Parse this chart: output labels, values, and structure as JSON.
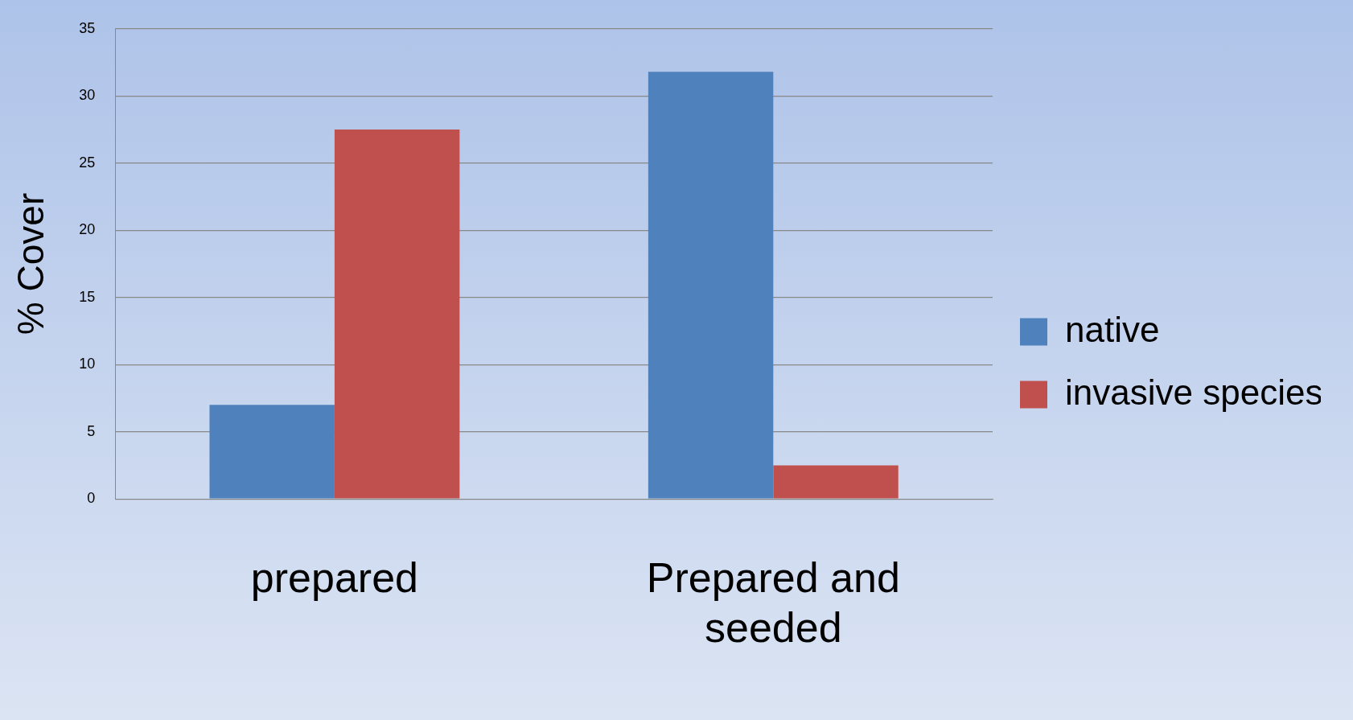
{
  "chart_data": {
    "type": "bar",
    "ylabel": "% Cover",
    "categories": [
      "prepared",
      "Prepared and seeded"
    ],
    "series": [
      {
        "name": "native",
        "color": "#4f81bd",
        "values": [
          7.0,
          31.8
        ]
      },
      {
        "name": "invasive species",
        "color": "#c0504d",
        "values": [
          27.5,
          2.5
        ]
      }
    ],
    "ylim": [
      0,
      35
    ],
    "yticks": [
      0,
      5,
      10,
      15,
      20,
      25,
      30,
      35
    ],
    "grid": "y",
    "legend": "right"
  }
}
